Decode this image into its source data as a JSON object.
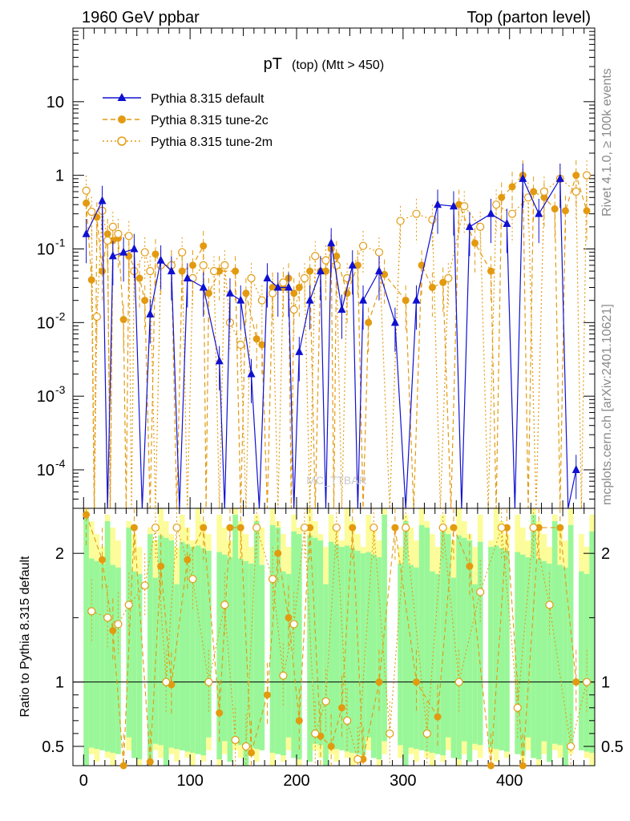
{
  "header": {
    "left": "1960 GeV ppbar",
    "right": "Top (parton level)"
  },
  "side": {
    "rivet": "Rivet 4.1.0, ≥ 100k events",
    "mcplots": "mcplots.cern.ch [arXiv:2401.10621]"
  },
  "watermark": "MC_TTBAR",
  "colors": {
    "default": "#1010d0",
    "tune2c": "#e39a10",
    "tune2m": "#e39a10",
    "band_green": "#99f79a",
    "band_yellow": "#fcfc9a"
  },
  "chart_data": [
    {
      "type": "line",
      "title_main": "pT",
      "title_sub": "(top) (Mtt > 450)",
      "yscale": "log",
      "xlim": [
        -10,
        480
      ],
      "ylim": [
        3e-05,
        100
      ],
      "y_ticks": [
        "10",
        "1",
        "10^-1",
        "10^-2",
        "10^-3",
        "10^-4"
      ],
      "legend_position": "top-left",
      "series": [
        {
          "name": "Pythia 8.315 default",
          "style": "solid-triangle",
          "x": [
            2.5,
            17.5,
            27.5,
            37.5,
            47.5,
            62.5,
            72.5,
            82.5,
            97.5,
            112.5,
            127.5,
            137.5,
            147.5,
            157.5,
            172.5,
            182.5,
            192.5,
            202.5,
            212.5,
            222.5,
            232.5,
            242.5,
            252.5,
            262.5,
            277.5,
            292.5,
            312.5,
            332.5,
            347.5,
            362.5,
            382.5,
            397.5,
            412.5,
            427.5,
            447.5,
            462.5
          ],
          "y": [
            0.16,
            0.45,
            0.08,
            0.09,
            0.1,
            0.013,
            0.07,
            0.05,
            0.04,
            0.03,
            0.003,
            0.025,
            0.02,
            0.002,
            0.04,
            0.03,
            0.03,
            0.004,
            0.02,
            0.05,
            0.12,
            0.015,
            0.06,
            0.02,
            0.05,
            0.01,
            0.02,
            0.4,
            0.38,
            0.2,
            0.3,
            0.22,
            0.9,
            0.3,
            0.9,
            0.0001
          ]
        },
        {
          "name": "Pythia 8.315 tune-2c",
          "style": "dashed-filled-circle",
          "x": [
            2.5,
            7.5,
            12.5,
            17.5,
            22.5,
            27.5,
            32.5,
            37.5,
            42.5,
            52.5,
            57.5,
            67.5,
            72.5,
            82.5,
            92.5,
            102.5,
            112.5,
            117.5,
            127.5,
            142.5,
            152.5,
            162.5,
            167.5,
            177.5,
            187.5,
            192.5,
            197.5,
            202.5,
            212.5,
            222.5,
            227.5,
            232.5,
            237.5,
            247.5,
            257.5,
            267.5,
            282.5,
            302.5,
            317.5,
            327.5,
            337.5,
            352.5,
            367.5,
            382.5,
            392.5,
            402.5,
            412.5,
            422.5,
            432.5,
            442.5,
            452.5,
            462.5,
            472.5
          ],
          "y": [
            0.42,
            0.038,
            0.27,
            0.05,
            0.16,
            0.13,
            0.14,
            0.011,
            0.08,
            0.04,
            0.02,
            0.085,
            0.06,
            0.06,
            0.05,
            0.06,
            0.11,
            0.025,
            0.05,
            0.05,
            0.025,
            0.006,
            0.005,
            0.03,
            0.03,
            0.04,
            0.025,
            0.03,
            0.05,
            0.05,
            0.05,
            0.1,
            0.08,
            0.025,
            0.06,
            0.01,
            0.045,
            0.02,
            0.06,
            0.03,
            0.035,
            0.4,
            0.12,
            0.05,
            0.5,
            0.7,
            1.0,
            0.6,
            0.5,
            0.35,
            0.33,
            1.0,
            0.33
          ]
        },
        {
          "name": "Pythia 8.315 tune-2m",
          "style": "dotted-open-circle",
          "x": [
            2.5,
            7.5,
            12.5,
            17.5,
            22.5,
            27.5,
            32.5,
            42.5,
            47.5,
            57.5,
            62.5,
            72.5,
            82.5,
            92.5,
            102.5,
            112.5,
            122.5,
            132.5,
            137.5,
            147.5,
            157.5,
            167.5,
            177.5,
            187.5,
            197.5,
            207.5,
            217.5,
            227.5,
            237.5,
            247.5,
            262.5,
            277.5,
            297.5,
            312.5,
            327.5,
            342.5,
            357.5,
            372.5,
            387.5,
            402.5,
            417.5,
            432.5,
            447.5,
            462.5,
            472.5
          ],
          "y": [
            0.62,
            0.32,
            0.012,
            0.33,
            0.13,
            0.2,
            0.16,
            0.15,
            0.05,
            0.09,
            0.05,
            0.06,
            0.06,
            0.09,
            0.04,
            0.06,
            0.05,
            0.06,
            0.01,
            0.005,
            0.04,
            0.02,
            0.025,
            0.035,
            0.015,
            0.04,
            0.08,
            0.07,
            0.06,
            0.04,
            0.11,
            0.09,
            0.24,
            0.3,
            0.25,
            0.04,
            0.38,
            0.2,
            0.4,
            0.3,
            0.5,
            0.6,
            0.9,
            0.6,
            1.0
          ]
        }
      ],
      "legend": [
        "Pythia 8.315 default",
        "Pythia 8.315 tune-2c",
        "Pythia 8.315 tune-2m"
      ]
    },
    {
      "type": "line",
      "ylabel": "Ratio to Pythia 8.315 default",
      "xlim": [
        -10,
        480
      ],
      "ylim": [
        0.35,
        2.35
      ],
      "x_ticks": [
        0,
        100,
        200,
        300,
        400
      ],
      "y_ticks": [
        0.5,
        1,
        2
      ],
      "reference": 1,
      "series": [
        {
          "name": "tune-2c",
          "x": [
            2.5,
            17.5,
            27.5,
            37.5,
            47.5,
            62.5,
            72.5,
            82.5,
            97.5,
            112.5,
            127.5,
            137.5,
            147.5,
            157.5,
            172.5,
            182.5,
            192.5,
            202.5,
            212.5,
            222.5,
            232.5,
            242.5,
            252.5,
            262.5,
            277.5,
            292.5,
            312.5,
            332.5,
            347.5,
            362.5,
            382.5,
            397.5,
            412.5,
            427.5,
            447.5,
            462.5
          ],
          "y": [
            2.3,
            1.95,
            1.4,
            0.35,
            2.2,
            0.38,
            1.9,
            0.98,
            1.95,
            2.2,
            0.76,
            2.2,
            2.2,
            0.45,
            0.9,
            2.0,
            1.5,
            0.7,
            2.2,
            0.58,
            0.5,
            0.8,
            2.2,
            0.4,
            1.0,
            2.2,
            1.0,
            0.73,
            2.2,
            1.9,
            0.35,
            2.2,
            0.35,
            2.2,
            2.2,
            1.0
          ]
        },
        {
          "name": "tune-2m",
          "x": [
            7.5,
            22.5,
            32.5,
            42.5,
            57.5,
            67.5,
            77.5,
            87.5,
            102.5,
            117.5,
            132.5,
            142.5,
            152.5,
            162.5,
            177.5,
            187.5,
            197.5,
            207.5,
            217.5,
            227.5,
            237.5,
            247.5,
            257.5,
            272.5,
            287.5,
            302.5,
            322.5,
            337.5,
            352.5,
            372.5,
            392.5,
            407.5,
            422.5,
            437.5,
            457.5,
            472.5
          ],
          "y": [
            1.55,
            1.5,
            1.45,
            1.6,
            1.75,
            2.2,
            1.0,
            2.2,
            1.8,
            1.0,
            1.6,
            0.55,
            0.5,
            2.2,
            1.8,
            1.05,
            1.45,
            2.2,
            0.6,
            0.85,
            2.2,
            0.7,
            0.4,
            2.2,
            0.6,
            2.2,
            0.6,
            2.2,
            1.0,
            1.7,
            2.2,
            0.8,
            2.2,
            1.6,
            0.5,
            1.0
          ]
        }
      ]
    }
  ]
}
